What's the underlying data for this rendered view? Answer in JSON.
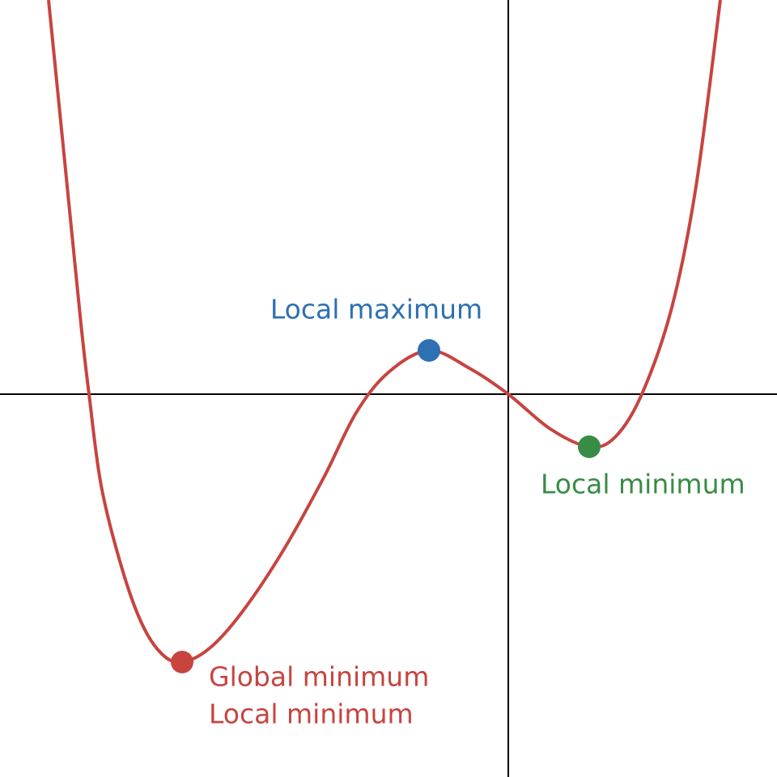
{
  "chart_data": {
    "type": "line",
    "xlim": [
      -6.28,
      3.32
    ],
    "ylim": [
      -4.73,
      4.87
    ],
    "axes": true,
    "curve": {
      "color": "#c74440",
      "x": [
        -5.68,
        -5.48,
        -5.28,
        -5.18,
        -5.03,
        -4.78,
        -4.53,
        -4.28,
        -4.03,
        -3.68,
        -3.28,
        -2.78,
        -2.28,
        -1.88,
        -1.48,
        -0.98,
        -0.48,
        0,
        0.52,
        1.0,
        1.32,
        1.65,
        2.02,
        2.32,
        2.62
      ],
      "y": [
        4.87,
        2.87,
        0.87,
        0,
        -1.13,
        -2.13,
        -2.83,
        -3.21,
        -3.31,
        -3.13,
        -2.68,
        -1.93,
        -1.03,
        -0.23,
        0.27,
        0.54,
        0.32,
        0,
        -0.43,
        -0.65,
        -0.53,
        0,
        1.07,
        2.57,
        4.87
      ]
    },
    "points": [
      {
        "x": -4.03,
        "y": -3.31,
        "color": "#c74440",
        "labels": [
          "Global minimum",
          "Local minimum"
        ]
      },
      {
        "x": -0.98,
        "y": 0.54,
        "color": "#2d70b3",
        "labels": [
          "Local maximum"
        ]
      },
      {
        "x": 1.0,
        "y": -0.65,
        "color": "#388c46",
        "labels": [
          "Local minimum"
        ]
      }
    ]
  }
}
